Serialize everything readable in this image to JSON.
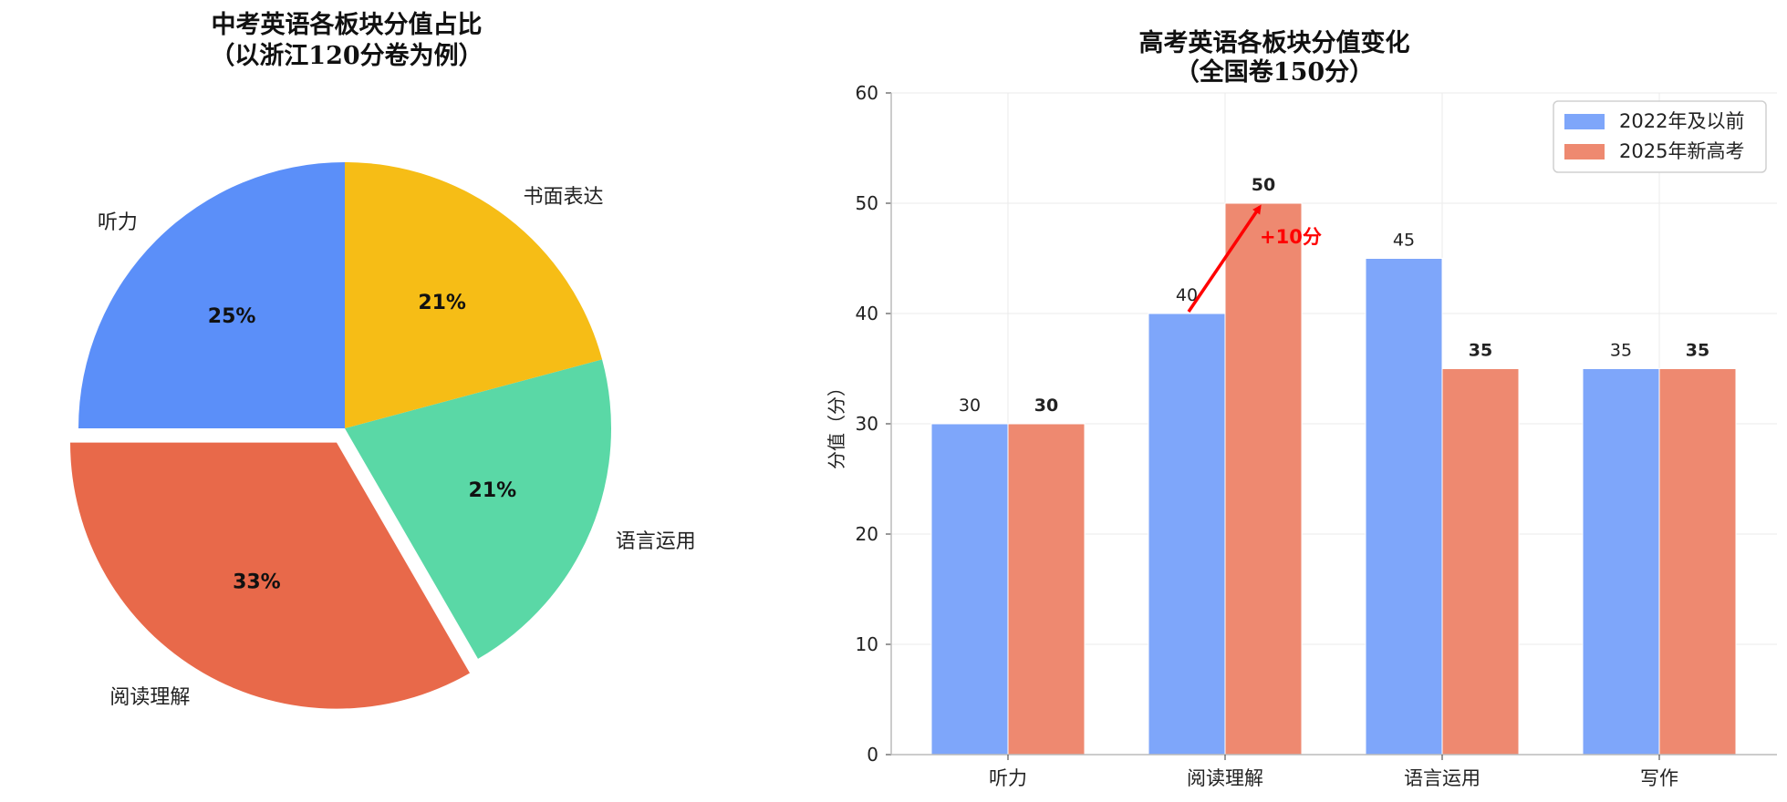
{
  "chart_data": [
    {
      "type": "pie",
      "title": "中考英语各板块分值占比",
      "subtitle": "（以浙江120分卷为例）",
      "slices": [
        {
          "label": "听力",
          "value": 30,
          "pct_label": "25%",
          "color": "#5B8FF9",
          "exploded": false
        },
        {
          "label": "阅读理解",
          "value": 40,
          "pct_label": "33%",
          "color": "#E8694A",
          "exploded": true
        },
        {
          "label": "语言运用",
          "value": 25,
          "pct_label": "21%",
          "color": "#5AD8A6",
          "exploded": false
        },
        {
          "label": "书面表达",
          "value": 25,
          "pct_label": "21%",
          "color": "#F6BD16",
          "exploded": false
        }
      ]
    },
    {
      "type": "bar",
      "title": "高考英语各板块分值变化",
      "subtitle": "（全国卷150分）",
      "ylabel": "分值（分）",
      "ylim": [
        0,
        60
      ],
      "yticks": [
        0,
        10,
        20,
        30,
        40,
        50,
        60
      ],
      "grid": true,
      "legend_position": "top-right",
      "categories": [
        "听力",
        "阅读理解",
        "语言运用",
        "写作"
      ],
      "series": [
        {
          "name": "2022年及以前",
          "color": "#7EA6FA",
          "values": [
            30,
            40,
            45,
            35
          ],
          "bold_labels": false
        },
        {
          "name": "2025年新高考",
          "color": "#EE8970",
          "values": [
            30,
            50,
            35,
            35
          ],
          "bold_labels": true
        }
      ],
      "annotation": {
        "text": "+10分",
        "color": "#ff0000",
        "from": {
          "category": 1,
          "value": 40
        },
        "to": {
          "category": 1,
          "value": 50
        }
      }
    }
  ]
}
